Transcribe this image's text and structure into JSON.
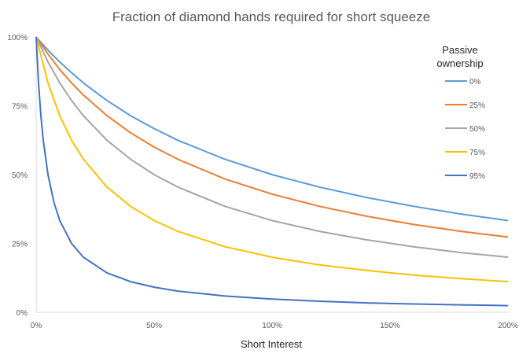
{
  "chart_data": {
    "type": "line",
    "title": "Fraction of diamond hands required for short squeeze",
    "xlabel": "Short Interest",
    "ylabel": "",
    "xlim": [
      0,
      2
    ],
    "ylim": [
      0,
      1
    ],
    "x_ticks": [
      0,
      0.5,
      1,
      1.5,
      2
    ],
    "x_tick_labels": [
      "0%",
      "50%",
      "100%",
      "150%",
      "200%"
    ],
    "y_ticks": [
      0,
      0.25,
      0.5,
      0.75,
      1
    ],
    "y_tick_labels": [
      "0%",
      "25%",
      "50%",
      "75%",
      "100%"
    ],
    "grid": false,
    "legend": {
      "title_lines": [
        "Passive",
        "ownership"
      ],
      "placement": "right"
    },
    "series": [
      {
        "name": "0%",
        "color": "#5B9BD5",
        "x": [
          0,
          0.05,
          0.1,
          0.15,
          0.2,
          0.3,
          0.4,
          0.5,
          0.6,
          0.8,
          1.0,
          1.2,
          1.4,
          1.6,
          1.8,
          2.0
        ],
        "y": [
          1,
          0.952,
          0.909,
          0.87,
          0.833,
          0.769,
          0.714,
          0.667,
          0.625,
          0.556,
          0.5,
          0.455,
          0.417,
          0.385,
          0.357,
          0.333
        ]
      },
      {
        "name": "25%",
        "color": "#ED7D31",
        "x": [
          0,
          0.05,
          0.1,
          0.15,
          0.2,
          0.3,
          0.4,
          0.5,
          0.6,
          0.8,
          1.0,
          1.2,
          1.4,
          1.6,
          1.8,
          2.0
        ],
        "y": [
          1,
          0.938,
          0.882,
          0.833,
          0.789,
          0.714,
          0.652,
          0.6,
          0.556,
          0.484,
          0.429,
          0.385,
          0.349,
          0.319,
          0.294,
          0.273
        ]
      },
      {
        "name": "50%",
        "color": "#A5A5A5",
        "x": [
          0,
          0.05,
          0.1,
          0.15,
          0.2,
          0.3,
          0.4,
          0.5,
          0.6,
          0.8,
          1.0,
          1.2,
          1.4,
          1.6,
          1.8,
          2.0
        ],
        "y": [
          1,
          0.909,
          0.833,
          0.769,
          0.714,
          0.625,
          0.556,
          0.5,
          0.455,
          0.385,
          0.333,
          0.294,
          0.263,
          0.238,
          0.217,
          0.2
        ]
      },
      {
        "name": "75%",
        "color": "#FFC000",
        "x": [
          0,
          0.05,
          0.1,
          0.15,
          0.2,
          0.3,
          0.4,
          0.5,
          0.6,
          0.8,
          1.0,
          1.2,
          1.4,
          1.6,
          1.8,
          2.0
        ],
        "y": [
          1,
          0.833,
          0.714,
          0.625,
          0.556,
          0.455,
          0.385,
          0.333,
          0.294,
          0.238,
          0.2,
          0.172,
          0.152,
          0.135,
          0.122,
          0.111
        ]
      },
      {
        "name": "95%",
        "color": "#4472C4",
        "x": [
          0,
          0.01,
          0.02,
          0.03,
          0.05,
          0.075,
          0.1,
          0.15,
          0.2,
          0.3,
          0.4,
          0.5,
          0.6,
          0.8,
          1.0,
          1.2,
          1.4,
          1.6,
          1.8,
          2.0
        ],
        "y": [
          1,
          0.833,
          0.714,
          0.625,
          0.5,
          0.4,
          0.333,
          0.25,
          0.2,
          0.143,
          0.111,
          0.091,
          0.077,
          0.059,
          0.048,
          0.04,
          0.034,
          0.03,
          0.027,
          0.024
        ]
      }
    ]
  }
}
